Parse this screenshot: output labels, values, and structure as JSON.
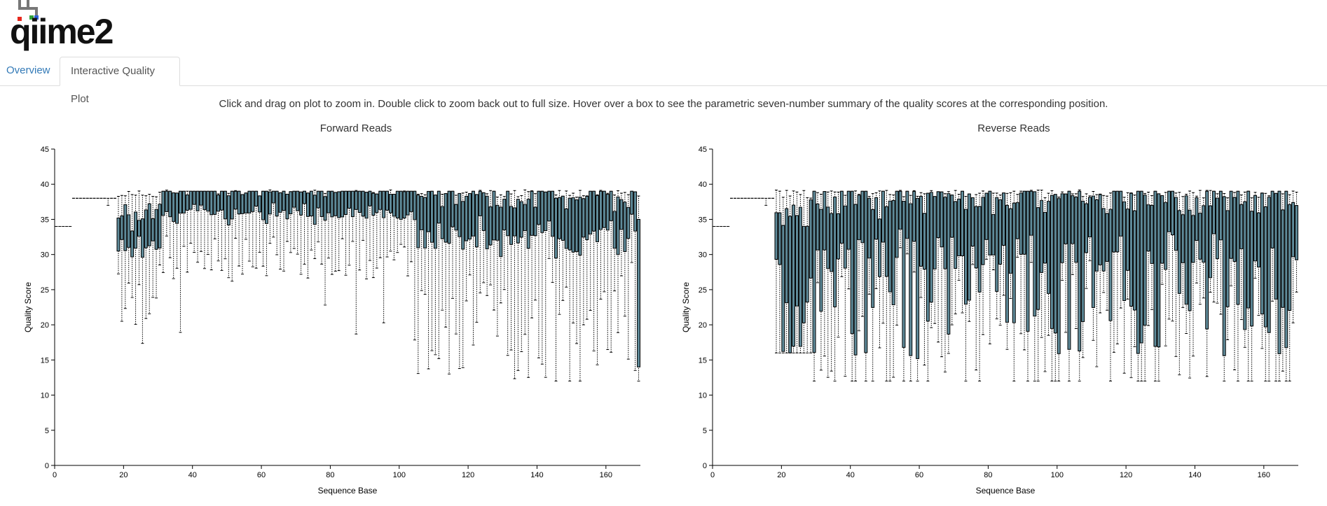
{
  "app": {
    "logo_text": "qiime2"
  },
  "tabs": [
    {
      "label": "Overview",
      "active": false
    },
    {
      "label": "Interactive Quality Plot",
      "active": true
    }
  ],
  "instructions": "Click and drag on plot to zoom in. Double click to zoom back out to full size. Hover over a box to see the parametric seven-number summary of the quality scores at the corresponding position.",
  "colors": {
    "box_fill": "#5f8b9a",
    "box_stroke": "#000000",
    "tab_link": "#337ab7"
  },
  "chart_data": [
    {
      "type": "box",
      "title": "Forward Reads",
      "xlabel": "Sequence Base",
      "ylabel": "Quality Score",
      "xlim": [
        0,
        170
      ],
      "ylim": [
        0,
        45
      ],
      "x_ticks": [
        0,
        20,
        40,
        60,
        80,
        100,
        120,
        140,
        160
      ],
      "y_ticks": [
        0,
        5,
        10,
        15,
        20,
        25,
        30,
        35,
        40,
        45
      ],
      "seed": 11,
      "profile": "forward"
    },
    {
      "type": "box",
      "title": "Reverse Reads",
      "xlabel": "Sequence Base",
      "ylabel": "Quality Score",
      "xlim": [
        0,
        170
      ],
      "ylim": [
        0,
        45
      ],
      "x_ticks": [
        0,
        20,
        40,
        60,
        80,
        100,
        120,
        140,
        160
      ],
      "y_ticks": [
        0,
        5,
        10,
        15,
        20,
        25,
        30,
        35,
        40,
        45
      ],
      "seed": 29,
      "profile": "reverse"
    }
  ]
}
